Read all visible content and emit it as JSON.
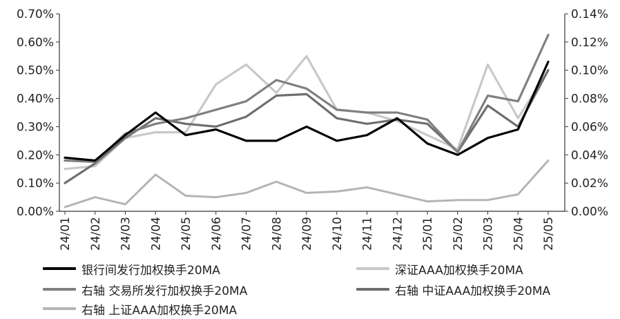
{
  "chart_data": {
    "type": "line",
    "x": [
      "24/01",
      "24/02",
      "24/03",
      "24/04",
      "24/05",
      "24/06",
      "24/07",
      "24/08",
      "24/09",
      "24/10",
      "24/11",
      "24/12",
      "25/01",
      "25/02",
      "25/03",
      "25/04",
      "25/05"
    ],
    "y_left": {
      "ticks": [
        "0.00%",
        "0.10%",
        "0.20%",
        "0.30%",
        "0.40%",
        "0.50%",
        "0.60%",
        "0.70%"
      ],
      "ylim": [
        0,
        0.7
      ]
    },
    "y_right": {
      "ticks": [
        "0.00%",
        "0.02%",
        "0.04%",
        "0.06%",
        "0.08%",
        "0.10%",
        "0.12%",
        "0.14%"
      ],
      "ylim": [
        0,
        0.14
      ]
    },
    "series": [
      {
        "name": "银行间发行加权换手20MA",
        "axis": "left",
        "color": "#000000",
        "values": [
          0.19,
          0.18,
          0.27,
          0.35,
          0.27,
          0.29,
          0.25,
          0.25,
          0.3,
          0.25,
          0.27,
          0.33,
          0.24,
          0.2,
          0.26,
          0.29,
          0.53
        ]
      },
      {
        "name": "深证AAA加权换手20MA",
        "axis": "left",
        "color": "#c8c8c8",
        "values": [
          0.15,
          0.16,
          0.26,
          0.28,
          0.28,
          0.45,
          0.52,
          0.42,
          0.55,
          0.36,
          0.35,
          0.32,
          0.27,
          0.22,
          0.52,
          0.33,
          0.5
        ]
      },
      {
        "name": "右轴 交易所发行加权换手20MA",
        "axis": "right",
        "color": "#7f7f7f",
        "values": [
          0.036,
          0.035,
          0.055,
          0.062,
          0.066,
          0.072,
          0.078,
          0.093,
          0.087,
          0.072,
          0.07,
          0.07,
          0.065,
          0.042,
          0.082,
          0.078,
          0.125
        ]
      },
      {
        "name": "右轴 中证AAA加权换手20MA",
        "axis": "right",
        "color": "#6e6e6e",
        "values": [
          0.02,
          0.034,
          0.052,
          0.066,
          0.062,
          0.06,
          0.067,
          0.082,
          0.083,
          0.066,
          0.062,
          0.065,
          0.062,
          0.042,
          0.075,
          0.06,
          0.1
        ]
      },
      {
        "name": "右轴 上证AAA加权换手20MA",
        "axis": "right",
        "color": "#b4b4b4",
        "values": [
          0.003,
          0.01,
          0.005,
          0.026,
          0.011,
          0.01,
          0.013,
          0.021,
          0.013,
          0.014,
          0.017,
          0.012,
          0.007,
          0.008,
          0.008,
          0.012,
          0.036
        ]
      }
    ]
  }
}
